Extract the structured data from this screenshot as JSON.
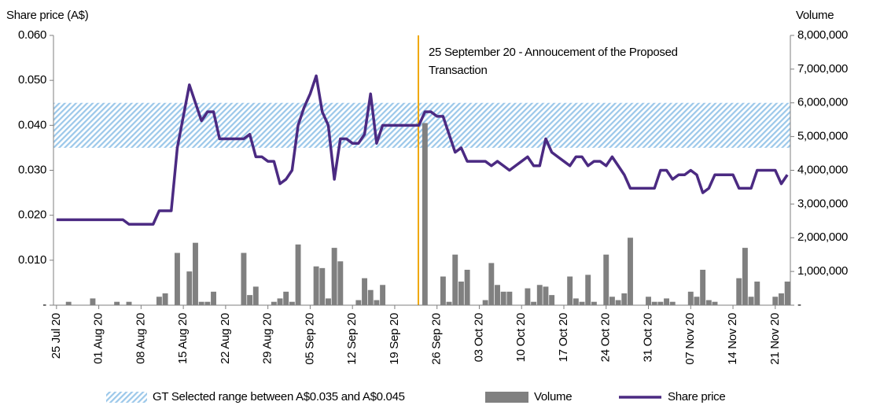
{
  "chart_data": {
    "type": "combo",
    "y_label": "Share price (A$)",
    "y2_label": "Volume",
    "annotation": [
      "25 September 20 - Annoucement of the Proposed",
      "Transaction"
    ],
    "categories": [
      "25 Jul 20",
      null,
      null,
      null,
      null,
      null,
      null,
      "01 Aug 20",
      null,
      null,
      null,
      null,
      null,
      null,
      "08 Aug 20",
      null,
      null,
      null,
      null,
      null,
      null,
      "15 Aug 20",
      null,
      null,
      null,
      null,
      null,
      null,
      "22 Aug 20",
      null,
      null,
      null,
      null,
      null,
      null,
      "29 Aug 20",
      null,
      null,
      null,
      null,
      null,
      null,
      "05 Sep 20",
      null,
      null,
      null,
      null,
      null,
      null,
      "12 Sep 20",
      null,
      null,
      null,
      null,
      null,
      null,
      "19 Sep 20",
      null,
      null,
      null,
      null,
      null,
      null,
      "26 Sep 20",
      null,
      null,
      null,
      null,
      null,
      null,
      "03 Oct 20",
      null,
      null,
      null,
      null,
      null,
      null,
      "10 Oct 20",
      null,
      null,
      null,
      null,
      null,
      null,
      "17 Oct 20",
      null,
      null,
      null,
      null,
      null,
      null,
      "24 Oct 20",
      null,
      null,
      null,
      null,
      null,
      null,
      "31 Oct 20",
      null,
      null,
      null,
      null,
      null,
      null,
      "07 Nov 20",
      null,
      null,
      null,
      null,
      null,
      null,
      "14 Nov 20",
      null,
      null,
      null,
      null,
      null,
      null,
      "21 Nov 20",
      null,
      null
    ],
    "band": {
      "name": "GT Selected range between A$0.035 and A$0.045",
      "color": "#9cc8ea",
      "values": [
        0.035,
        0.045
      ]
    },
    "series": [
      {
        "name": "Volume",
        "type": "bar",
        "axis": "y2",
        "color": "#808080",
        "values": [
          0,
          0,
          100000,
          0,
          0,
          0,
          200000,
          0,
          0,
          0,
          100000,
          0,
          100000,
          0,
          0,
          0,
          0,
          250000,
          350000,
          0,
          1550000,
          0,
          1000000,
          1850000,
          100000,
          100000,
          400000,
          0,
          0,
          0,
          0,
          1550000,
          300000,
          550000,
          0,
          0,
          100000,
          200000,
          400000,
          100000,
          1800000,
          0,
          0,
          1150000,
          1100000,
          200000,
          1700000,
          1300000,
          0,
          0,
          150000,
          800000,
          450000,
          150000,
          600000,
          0,
          0,
          0,
          0,
          0,
          0,
          5400000,
          0,
          0,
          850000,
          100000,
          1500000,
          700000,
          1050000,
          0,
          0,
          150000,
          1250000,
          600000,
          400000,
          400000,
          0,
          0,
          500000,
          100000,
          600000,
          550000,
          300000,
          0,
          0,
          850000,
          200000,
          100000,
          900000,
          100000,
          0,
          1500000,
          250000,
          150000,
          350000,
          2000000,
          0,
          0,
          250000,
          100000,
          100000,
          200000,
          100000,
          0,
          0,
          400000,
          250000,
          1050000,
          150000,
          100000,
          0,
          0,
          0,
          800000,
          1700000,
          250000,
          700000,
          0,
          0,
          250000,
          350000,
          700000
        ]
      },
      {
        "name": "Share price",
        "type": "line",
        "color": "#4b2a82",
        "values": [
          0.019,
          0.019,
          0.019,
          0.019,
          0.019,
          0.019,
          0.019,
          0.019,
          0.019,
          0.019,
          0.019,
          0.019,
          0.018,
          0.018,
          0.018,
          0.018,
          0.018,
          0.021,
          0.021,
          0.021,
          0.035,
          0.042,
          0.049,
          0.045,
          0.041,
          0.043,
          0.043,
          0.037,
          0.037,
          0.037,
          0.037,
          0.037,
          0.038,
          0.033,
          0.033,
          0.032,
          0.032,
          0.027,
          0.028,
          0.03,
          0.04,
          0.044,
          0.047,
          0.051,
          0.043,
          0.04,
          0.028,
          0.037,
          0.037,
          0.036,
          0.036,
          0.038,
          0.047,
          0.036,
          0.04,
          0.04,
          0.04,
          0.04,
          0.04,
          0.04,
          0.04,
          0.043,
          0.043,
          0.042,
          0.042,
          0.038,
          0.034,
          0.035,
          0.032,
          0.032,
          0.032,
          0.032,
          0.031,
          0.032,
          0.031,
          0.03,
          0.031,
          0.032,
          0.033,
          0.031,
          0.031,
          0.037,
          0.034,
          0.033,
          0.032,
          0.031,
          0.033,
          0.033,
          0.031,
          0.032,
          0.032,
          0.031,
          0.033,
          0.031,
          0.029,
          0.026,
          0.026,
          0.026,
          0.026,
          0.026,
          0.03,
          0.03,
          0.028,
          0.029,
          0.029,
          0.03,
          0.029,
          0.025,
          0.026,
          0.029,
          0.029,
          0.029,
          0.029,
          0.026,
          0.026,
          0.026,
          0.03,
          0.03,
          0.03,
          0.03,
          0.027,
          0.029
        ]
      }
    ],
    "ylim": [
      0,
      0.06
    ],
    "yticks": [
      {
        "value": 0,
        "label": "-"
      },
      {
        "value": 0.01,
        "label": "0.010"
      },
      {
        "value": 0.02,
        "label": "0.020"
      },
      {
        "value": 0.03,
        "label": "0.030"
      },
      {
        "value": 0.04,
        "label": "0.040"
      },
      {
        "value": 0.05,
        "label": "0.050"
      },
      {
        "value": 0.06,
        "label": "0.060"
      }
    ],
    "y2lim": [
      0,
      8000000
    ],
    "y2ticks": [
      {
        "value": 0,
        "label": "-"
      },
      {
        "value": 1000000,
        "label": "1,000,000"
      },
      {
        "value": 2000000,
        "label": "2,000,000"
      },
      {
        "value": 3000000,
        "label": "3,000,000"
      },
      {
        "value": 4000000,
        "label": "4,000,000"
      },
      {
        "value": 5000000,
        "label": "5,000,000"
      },
      {
        "value": 6000000,
        "label": "6,000,000"
      },
      {
        "value": 7000000,
        "label": "7,000,000"
      },
      {
        "value": 8000000,
        "label": "8,000,000"
      }
    ],
    "grid": false,
    "legend": "bottom"
  }
}
